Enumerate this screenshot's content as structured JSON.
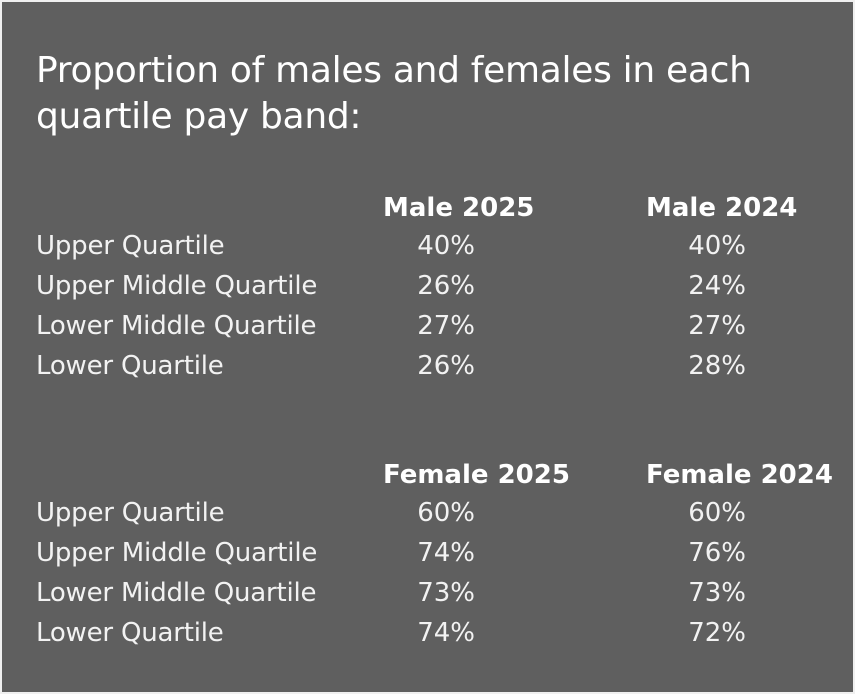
{
  "title_line1": "Proportion of males and females in each",
  "title_line2": "quartile pay band:",
  "male": {
    "col_a": "Male 2025",
    "col_b": "Male 2024",
    "rows": [
      {
        "label": "Upper Quartile",
        "a": "40%",
        "b": "40%"
      },
      {
        "label": "Upper Middle Quartile",
        "a": "26%",
        "b": "24%"
      },
      {
        "label": "Lower Middle Quartile",
        "a": "27%",
        "b": "27%"
      },
      {
        "label": "Lower Quartile",
        "a": "26%",
        "b": "28%"
      }
    ]
  },
  "female": {
    "col_a": "Female 2025",
    "col_b": "Female 2024",
    "rows": [
      {
        "label": "Upper Quartile",
        "a": "60%",
        "b": "60%"
      },
      {
        "label": "Upper Middle Quartile",
        "a": "74%",
        "b": "76%"
      },
      {
        "label": "Lower Middle Quartile",
        "a": "73%",
        "b": "73%"
      },
      {
        "label": "Lower Quartile",
        "a": "74%",
        "b": "72%"
      }
    ]
  },
  "colors": {
    "background": "#5f5f5f",
    "text": "#ffffff"
  }
}
